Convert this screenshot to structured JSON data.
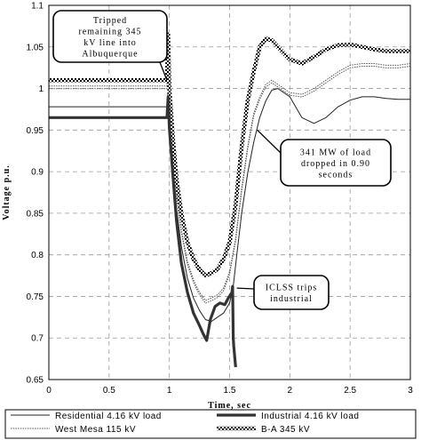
{
  "chart_data": {
    "type": "line",
    "xlabel": "Time, sec",
    "ylabel": "Voltage p.u.",
    "xlim": [
      0,
      3
    ],
    "ylim": [
      0.65,
      1.1
    ],
    "xticks": [
      "0",
      "0.5",
      "1",
      "1.5",
      "2",
      "2.5",
      "3"
    ],
    "xtick_values": [
      0,
      0.5,
      1,
      1.5,
      2,
      2.5,
      3
    ],
    "yticks": [
      "0.65",
      "0.7",
      "0.75",
      "0.8",
      "0.85",
      "0.9",
      "0.95",
      "1",
      "1.05",
      "1.1"
    ],
    "ytick_values": [
      0.65,
      0.7,
      0.75,
      0.8,
      0.85,
      0.9,
      0.95,
      1.0,
      1.05,
      1.1
    ],
    "grid": true,
    "legend_position": "bottom",
    "series": [
      {
        "name": "Residential 4.16 kV load",
        "style": "thin",
        "color": "#222222",
        "x": [
          0,
          0.98,
          0.99,
          1.0,
          1.03,
          1.06,
          1.1,
          1.15,
          1.2,
          1.25,
          1.3,
          1.35,
          1.4,
          1.45,
          1.5,
          1.53,
          1.56,
          1.6,
          1.65,
          1.7,
          1.75,
          1.8,
          1.85,
          1.9,
          2.0,
          2.1,
          2.2,
          2.3,
          2.4,
          2.5,
          2.6,
          2.7,
          2.8,
          2.9,
          3.0
        ],
        "y": [
          0.978,
          0.978,
          1.0,
          0.965,
          0.91,
          0.855,
          0.81,
          0.772,
          0.748,
          0.733,
          0.722,
          0.72,
          0.725,
          0.73,
          0.742,
          0.762,
          0.8,
          0.85,
          0.898,
          0.935,
          0.965,
          0.985,
          0.998,
          1.0,
          0.99,
          0.965,
          0.958,
          0.965,
          0.978,
          0.986,
          0.99,
          0.99,
          0.988,
          0.987,
          0.987
        ]
      },
      {
        "name": "Industrial 4.16 kV load",
        "style": "thick",
        "color": "#333333",
        "x": [
          0,
          0.98,
          0.99,
          1.0,
          1.03,
          1.06,
          1.1,
          1.15,
          1.2,
          1.25,
          1.28,
          1.31,
          1.34,
          1.38,
          1.42,
          1.46,
          1.49,
          1.52,
          1.525,
          1.53,
          1.535,
          1.55
        ],
        "y": [
          0.965,
          0.965,
          0.99,
          0.952,
          0.895,
          0.84,
          0.79,
          0.755,
          0.73,
          0.715,
          0.705,
          0.697,
          0.722,
          0.738,
          0.742,
          0.74,
          0.748,
          0.755,
          0.762,
          0.7,
          0.69,
          0.665
        ]
      },
      {
        "name": "West Mesa 115 kV",
        "style": "triangle",
        "color": "#555555",
        "x": [
          0,
          0.98,
          0.99,
          1.0,
          1.03,
          1.06,
          1.1,
          1.15,
          1.2,
          1.25,
          1.3,
          1.35,
          1.4,
          1.45,
          1.5,
          1.55,
          1.6,
          1.65,
          1.7,
          1.75,
          1.8,
          1.85,
          1.9,
          2.0,
          2.1,
          2.2,
          2.3,
          2.4,
          2.5,
          2.6,
          2.7,
          2.8,
          2.9,
          3.0
        ],
        "y": [
          1.003,
          1.003,
          1.055,
          0.985,
          0.925,
          0.872,
          0.83,
          0.792,
          0.77,
          0.755,
          0.745,
          0.748,
          0.752,
          0.76,
          0.78,
          0.82,
          0.88,
          0.93,
          0.97,
          0.99,
          1.005,
          1.01,
          1.005,
          0.995,
          0.993,
          1.0,
          1.01,
          1.02,
          1.028,
          1.03,
          1.03,
          1.028,
          1.028,
          1.03
        ]
      },
      {
        "name": "B-A 345 kV",
        "style": "checker",
        "color": "#000000",
        "x": [
          0,
          0.98,
          0.99,
          1.0,
          1.03,
          1.06,
          1.1,
          1.15,
          1.2,
          1.25,
          1.3,
          1.35,
          1.4,
          1.45,
          1.5,
          1.55,
          1.6,
          1.65,
          1.7,
          1.75,
          1.8,
          1.85,
          1.9,
          2.0,
          2.1,
          2.2,
          2.3,
          2.4,
          2.5,
          2.6,
          2.7,
          2.8,
          2.9,
          3.0
        ],
        "y": [
          1.01,
          1.01,
          1.065,
          1.0,
          0.94,
          0.89,
          0.85,
          0.815,
          0.795,
          0.782,
          0.775,
          0.778,
          0.783,
          0.795,
          0.815,
          0.86,
          0.93,
          0.985,
          1.02,
          1.05,
          1.06,
          1.058,
          1.05,
          1.035,
          1.03,
          1.038,
          1.047,
          1.052,
          1.053,
          1.05,
          1.047,
          1.045,
          1.045,
          1.045
        ]
      }
    ],
    "annotations": [
      {
        "lines": [
          "Tripped",
          "remaining 345",
          "kV line into",
          "Albuquerque"
        ],
        "target_x": 0.98,
        "target_y": 1.01
      },
      {
        "lines": [
          "341 MW of load",
          "dropped in 0.90",
          "seconds"
        ],
        "target_x": 1.73,
        "target_y": 0.95
      },
      {
        "lines": [
          "ICLSS trips",
          "industrial"
        ],
        "target_x": 1.56,
        "target_y": 0.76
      }
    ]
  }
}
